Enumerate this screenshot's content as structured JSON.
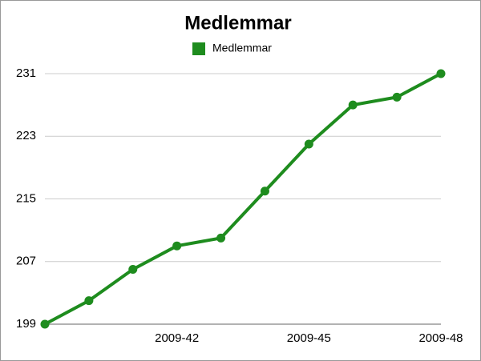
{
  "chart_data": {
    "type": "line",
    "title": "Medlemmar",
    "categories": [
      null,
      null,
      null,
      "2009-42",
      null,
      null,
      "2009-45",
      null,
      null,
      "2009-48"
    ],
    "series": [
      {
        "name": "Medlemmar",
        "color": "#1e8c1e",
        "values": [
          199,
          202,
          206,
          209,
          210,
          216,
          222,
          227,
          228,
          231
        ]
      }
    ],
    "ylim": [
      199,
      231
    ],
    "yticks": [
      199,
      207,
      215,
      223,
      231
    ],
    "grid": true,
    "legend": "top"
  }
}
